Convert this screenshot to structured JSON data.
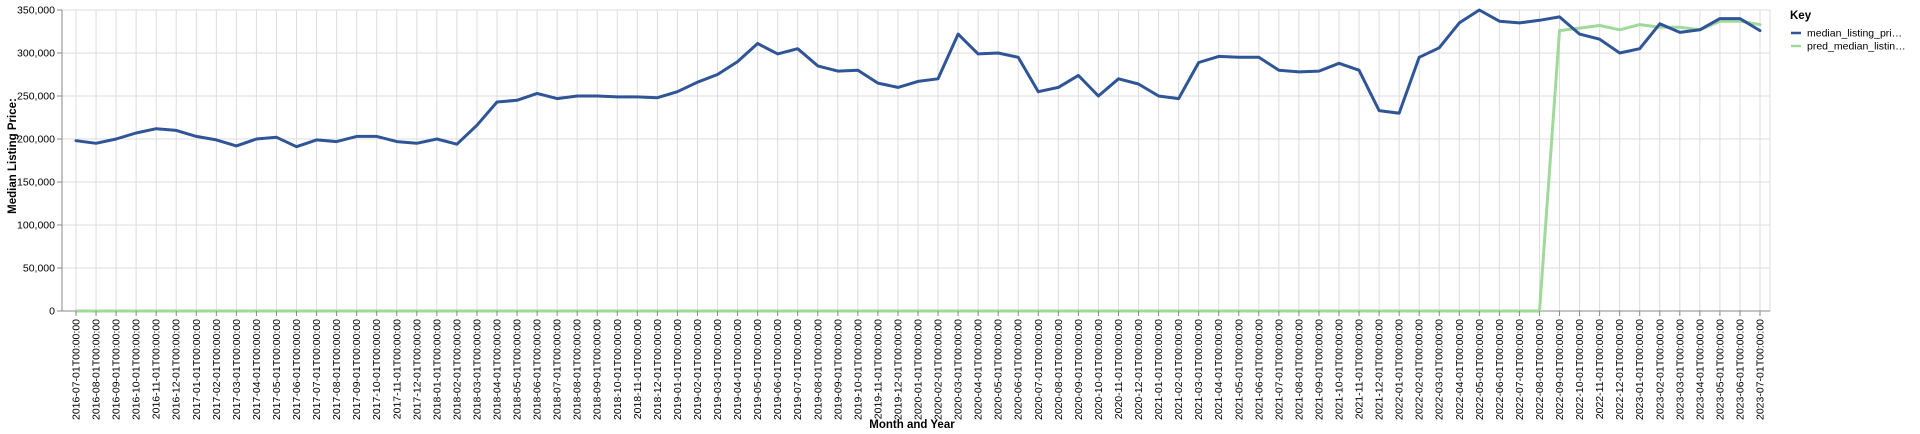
{
  "chart_data": {
    "type": "line",
    "xlabel": "Month and Year",
    "ylabel": "Median Listing Price:",
    "ylim": [
      0,
      350000
    ],
    "yticks": [
      0,
      50000,
      100000,
      150000,
      200000,
      250000,
      300000,
      350000
    ],
    "ytick_labels": [
      "0",
      "50,000",
      "100,000",
      "150,000",
      "200,000",
      "250,000",
      "300,000",
      "350,000"
    ],
    "grid": true,
    "legend_title": "Key",
    "legend_position": "top-right",
    "x": [
      "2016-07-01T00:00:00",
      "2016-08-01T00:00:00",
      "2016-09-01T00:00:00",
      "2016-10-01T00:00:00",
      "2016-11-01T00:00:00",
      "2016-12-01T00:00:00",
      "2017-01-01T00:00:00",
      "2017-02-01T00:00:00",
      "2017-03-01T00:00:00",
      "2017-04-01T00:00:00",
      "2017-05-01T00:00:00",
      "2017-06-01T00:00:00",
      "2017-07-01T00:00:00",
      "2017-08-01T00:00:00",
      "2017-09-01T00:00:00",
      "2017-10-01T00:00:00",
      "2017-11-01T00:00:00",
      "2017-12-01T00:00:00",
      "2018-01-01T00:00:00",
      "2018-02-01T00:00:00",
      "2018-03-01T00:00:00",
      "2018-04-01T00:00:00",
      "2018-05-01T00:00:00",
      "2018-06-01T00:00:00",
      "2018-07-01T00:00:00",
      "2018-08-01T00:00:00",
      "2018-09-01T00:00:00",
      "2018-10-01T00:00:00",
      "2018-11-01T00:00:00",
      "2018-12-01T00:00:00",
      "2019-01-01T00:00:00",
      "2019-02-01T00:00:00",
      "2019-03-01T00:00:00",
      "2019-04-01T00:00:00",
      "2019-05-01T00:00:00",
      "2019-06-01T00:00:00",
      "2019-07-01T00:00:00",
      "2019-08-01T00:00:00",
      "2019-09-01T00:00:00",
      "2019-10-01T00:00:00",
      "2019-11-01T00:00:00",
      "2019-12-01T00:00:00",
      "2020-01-01T00:00:00",
      "2020-02-01T00:00:00",
      "2020-03-01T00:00:00",
      "2020-04-01T00:00:00",
      "2020-05-01T00:00:00",
      "2020-06-01T00:00:00",
      "2020-07-01T00:00:00",
      "2020-08-01T00:00:00",
      "2020-09-01T00:00:00",
      "2020-10-01T00:00:00",
      "2020-11-01T00:00:00",
      "2020-12-01T00:00:00",
      "2021-01-01T00:00:00",
      "2021-02-01T00:00:00",
      "2021-03-01T00:00:00",
      "2021-04-01T00:00:00",
      "2021-05-01T00:00:00",
      "2021-06-01T00:00:00",
      "2021-07-01T00:00:00",
      "2021-08-01T00:00:00",
      "2021-09-01T00:00:00",
      "2021-10-01T00:00:00",
      "2021-11-01T00:00:00",
      "2021-12-01T00:00:00",
      "2022-01-01T00:00:00",
      "2022-02-01T00:00:00",
      "2022-03-01T00:00:00",
      "2022-04-01T00:00:00",
      "2022-05-01T00:00:00",
      "2022-06-01T00:00:00",
      "2022-07-01T00:00:00",
      "2022-08-01T00:00:00",
      "2022-09-01T00:00:00",
      "2022-10-01T00:00:00",
      "2022-11-01T00:00:00",
      "2022-12-01T00:00:00",
      "2023-01-01T00:00:00",
      "2023-02-01T00:00:00",
      "2023-03-01T00:00:00",
      "2023-04-01T00:00:00",
      "2023-05-01T00:00:00",
      "2023-06-01T00:00:00",
      "2023-07-01T00:00:00"
    ],
    "series": [
      {
        "name": "median_listing_pri…",
        "color": "#2f5597",
        "values": [
          198000,
          195000,
          200000,
          207000,
          212000,
          210000,
          203000,
          199000,
          192000,
          200000,
          202000,
          191000,
          199000,
          197000,
          203000,
          203000,
          197000,
          195000,
          200000,
          194000,
          216000,
          243000,
          245000,
          253000,
          247000,
          250000,
          250000,
          249000,
          249000,
          248000,
          255000,
          266000,
          275000,
          290000,
          311000,
          299000,
          305000,
          285000,
          279000,
          280000,
          265000,
          260000,
          267000,
          270000,
          322000,
          299000,
          300000,
          295000,
          255000,
          260000,
          274000,
          250000,
          270000,
          264000,
          250000,
          247000,
          289000,
          296000,
          295000,
          295000,
          280000,
          278000,
          279000,
          288000,
          280000,
          233000,
          230000,
          295000,
          306000,
          335000,
          350000,
          337000,
          335000,
          338000,
          342000,
          322000,
          316000,
          300000,
          305000,
          334000,
          324000,
          327000,
          340000,
          340000,
          326000
        ]
      },
      {
        "name": "pred_median_listin…",
        "color": "#a1d99b",
        "values": [
          0,
          0,
          0,
          0,
          0,
          0,
          0,
          0,
          0,
          0,
          0,
          0,
          0,
          0,
          0,
          0,
          0,
          0,
          0,
          0,
          0,
          0,
          0,
          0,
          0,
          0,
          0,
          0,
          0,
          0,
          0,
          0,
          0,
          0,
          0,
          0,
          0,
          0,
          0,
          0,
          0,
          0,
          0,
          0,
          0,
          0,
          0,
          0,
          0,
          0,
          0,
          0,
          0,
          0,
          0,
          0,
          0,
          0,
          0,
          0,
          0,
          0,
          0,
          0,
          0,
          0,
          0,
          0,
          0,
          0,
          0,
          0,
          0,
          0,
          326000,
          329000,
          332000,
          327000,
          333000,
          330000,
          330000,
          327000,
          337000,
          337000,
          333000
        ]
      }
    ]
  }
}
